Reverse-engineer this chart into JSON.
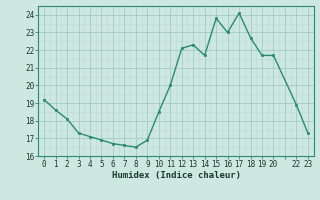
{
  "x": [
    0,
    1,
    2,
    3,
    4,
    5,
    6,
    7,
    8,
    9,
    10,
    11,
    12,
    13,
    14,
    15,
    16,
    17,
    18,
    19,
    20,
    22,
    23
  ],
  "y": [
    19.2,
    18.6,
    18.1,
    17.3,
    17.1,
    16.9,
    16.7,
    16.6,
    16.5,
    16.9,
    18.5,
    20.0,
    22.1,
    22.3,
    21.7,
    23.8,
    23.0,
    24.1,
    22.7,
    21.7,
    21.7,
    18.9,
    17.3
  ],
  "line_color": "#2d8a6e",
  "marker_color": "#2d8a6e",
  "bg_color": "#cce8e0",
  "grid_color_major": "#aacfc8",
  "grid_color_minor": "#bfdcd6",
  "axis_label": "Humidex (Indice chaleur)",
  "xlim": [
    -0.5,
    23.5
  ],
  "ylim": [
    16,
    24.5
  ],
  "yticks": [
    16,
    17,
    18,
    19,
    20,
    21,
    22,
    23,
    24
  ],
  "font_color": "#1a3a2a",
  "tick_label_fontsize": 5.5,
  "xlabel_fontsize": 6.5
}
